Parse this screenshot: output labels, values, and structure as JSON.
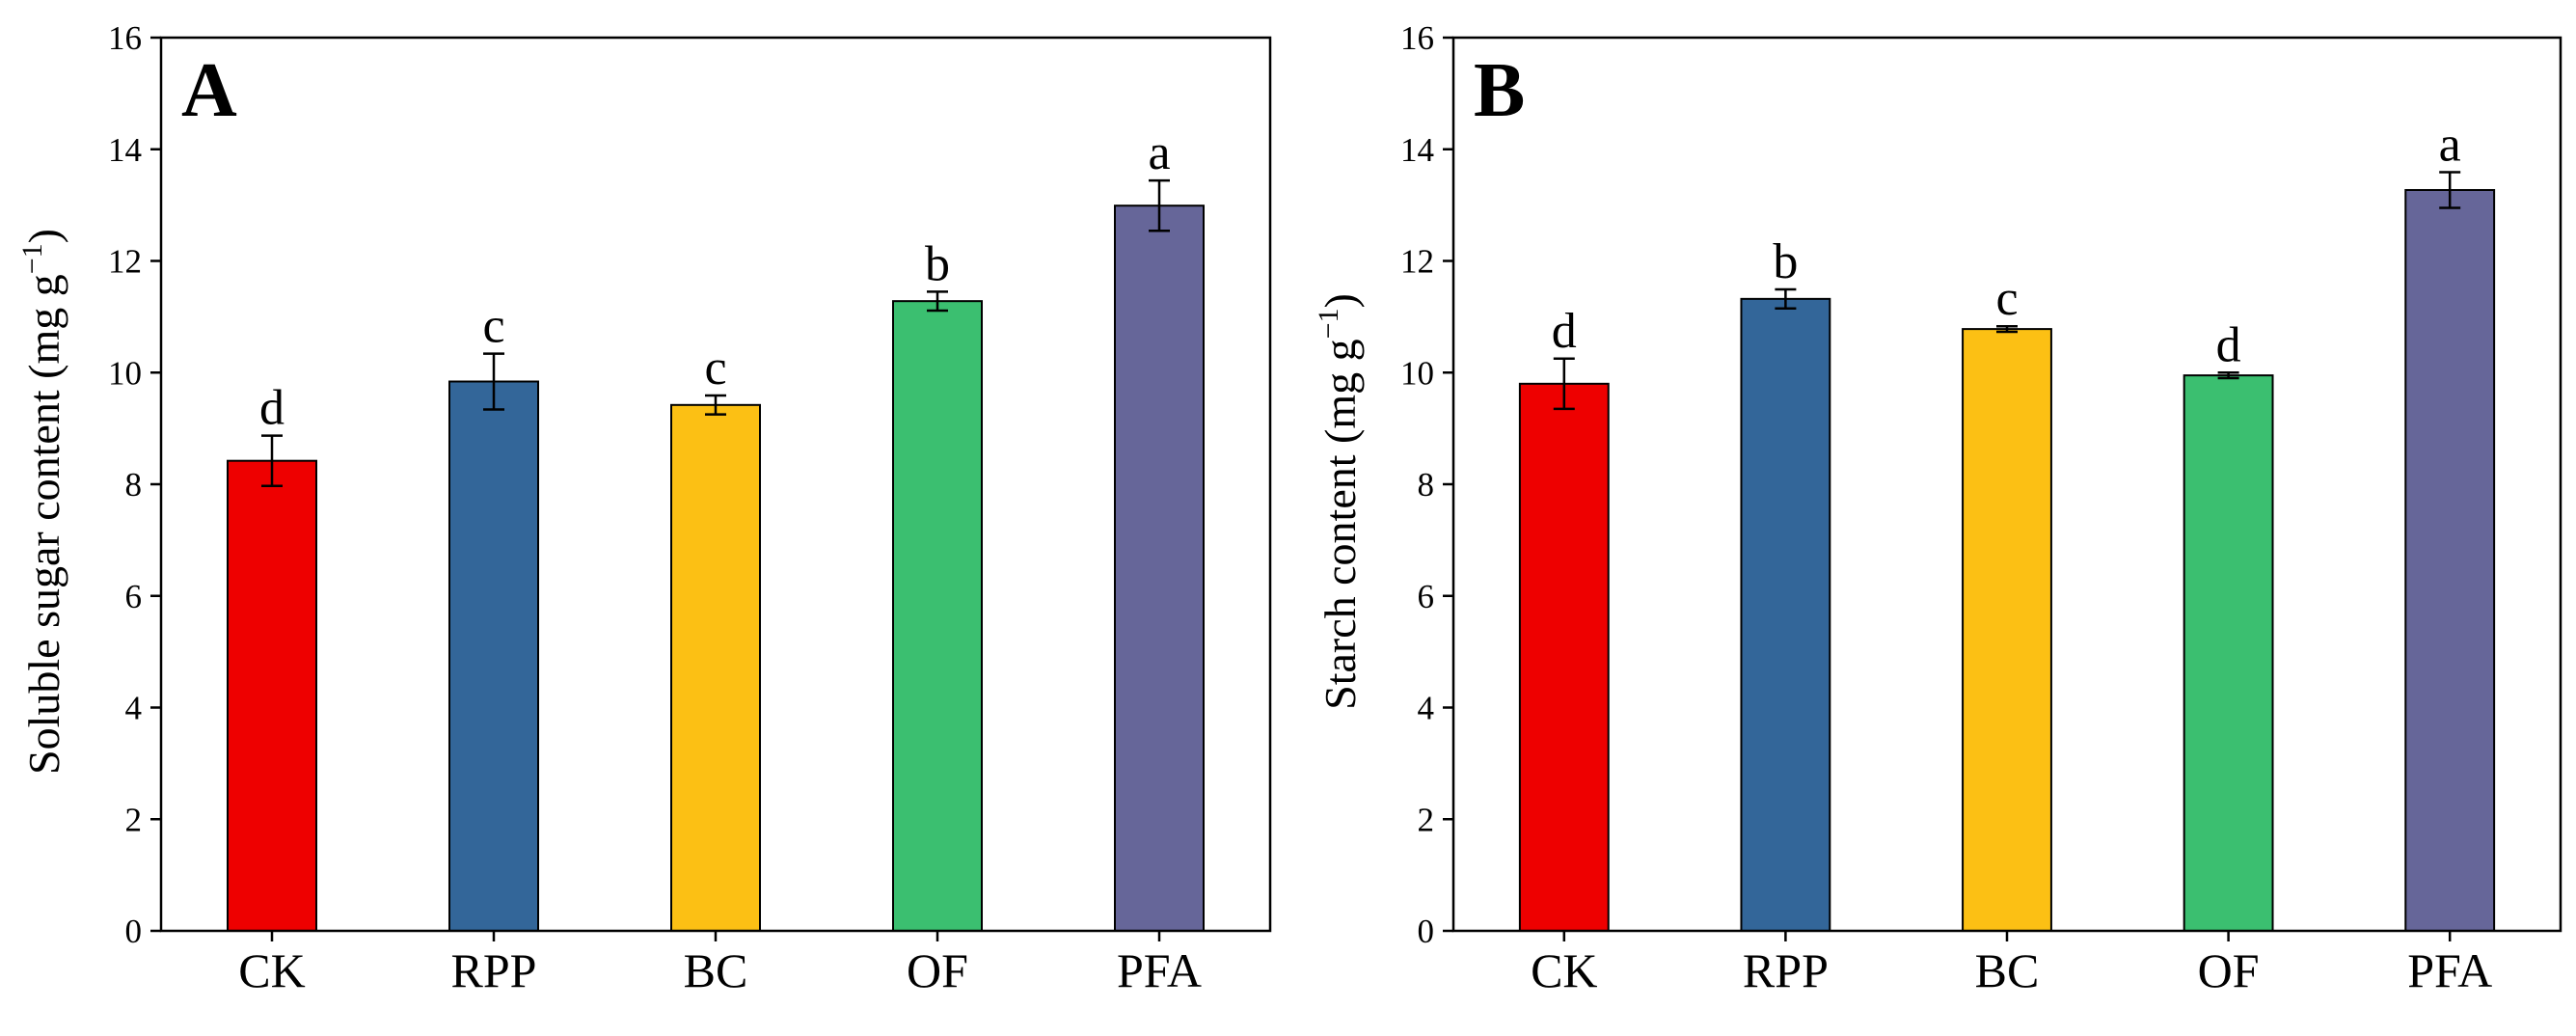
{
  "chart_data": [
    {
      "type": "bar",
      "panel_label": "A",
      "title": "",
      "xlabel": "",
      "ylabel": "Soluble sugar content (mg g",
      "ylabel_sup": "−1",
      "ylabel_close": ")",
      "ylim": [
        0,
        16
      ],
      "yticks": [
        "0",
        "2",
        "4",
        "6",
        "8",
        "10",
        "12",
        "14",
        "16"
      ],
      "categories": [
        "CK",
        "RPP",
        "BC",
        "OF",
        "PFA"
      ],
      "values": [
        8.42,
        9.84,
        9.42,
        11.28,
        12.99
      ],
      "errors": [
        0.45,
        0.5,
        0.17,
        0.17,
        0.45
      ],
      "letters": [
        "d",
        "c",
        "c",
        "b",
        "a"
      ],
      "colors": [
        "#ee0000",
        "#336699",
        "#fcc014",
        "#3bbf70",
        "#666699"
      ],
      "grid": false
    },
    {
      "type": "bar",
      "panel_label": "B",
      "title": "",
      "xlabel": "",
      "ylabel": "Starch content (mg g",
      "ylabel_sup": "−1",
      "ylabel_close": ")",
      "ylim": [
        0,
        16
      ],
      "yticks": [
        "0",
        "2",
        "4",
        "6",
        "8",
        "10",
        "12",
        "14",
        "16"
      ],
      "categories": [
        "CK",
        "RPP",
        "BC",
        "OF",
        "PFA"
      ],
      "values": [
        9.8,
        11.32,
        10.78,
        9.95,
        13.27
      ],
      "errors": [
        0.45,
        0.17,
        0.05,
        0.05,
        0.32
      ],
      "letters": [
        "d",
        "b",
        "c",
        "d",
        "a"
      ],
      "colors": [
        "#ee0000",
        "#336699",
        "#fcc014",
        "#3bbf70",
        "#666699"
      ],
      "grid": false
    }
  ]
}
